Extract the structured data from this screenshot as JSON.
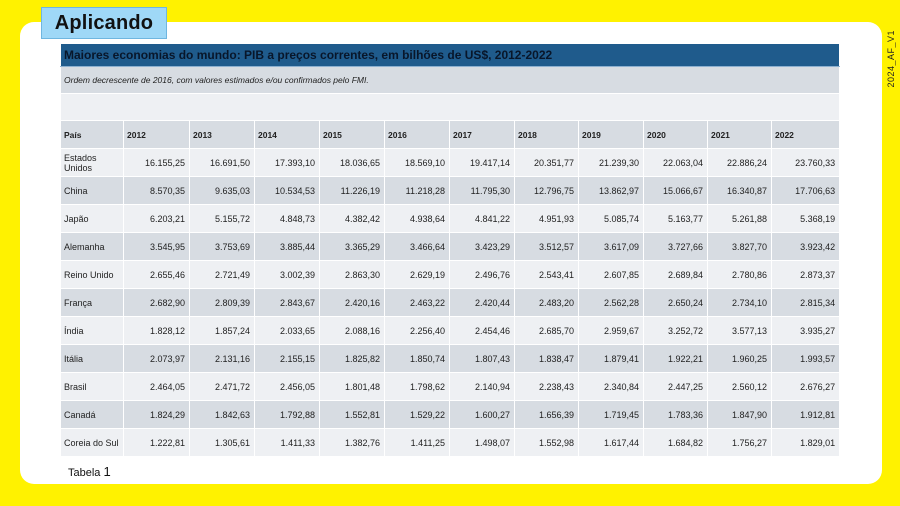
{
  "badge": "Aplicando",
  "side_code": "2024_AF_V1",
  "table": {
    "title": "Maiores economias do mundo: PIB a preços correntes, em bilhões de US$, 2012-2022",
    "subtitle": "Ordem decrescente de 2016, com valores estimados e/ou confirmados pelo FMI.",
    "headers": [
      "País",
      "2012",
      "2013",
      "2014",
      "2015",
      "2016",
      "2017",
      "2018",
      "2019",
      "2020",
      "2021",
      "2022"
    ],
    "rows": [
      [
        "Estados Unidos",
        "16.155,25",
        "16.691,50",
        "17.393,10",
        "18.036,65",
        "18.569,10",
        "19.417,14",
        "20.351,77",
        "21.239,30",
        "22.063,04",
        "22.886,24",
        "23.760,33"
      ],
      [
        "China",
        "8.570,35",
        "9.635,03",
        "10.534,53",
        "11.226,19",
        "11.218,28",
        "11.795,30",
        "12.796,75",
        "13.862,97",
        "15.066,67",
        "16.340,87",
        "17.706,63"
      ],
      [
        "Japão",
        "6.203,21",
        "5.155,72",
        "4.848,73",
        "4.382,42",
        "4.938,64",
        "4.841,22",
        "4.951,93",
        "5.085,74",
        "5.163,77",
        "5.261,88",
        "5.368,19"
      ],
      [
        "Alemanha",
        "3.545,95",
        "3.753,69",
        "3.885,44",
        "3.365,29",
        "3.466,64",
        "3.423,29",
        "3.512,57",
        "3.617,09",
        "3.727,66",
        "3.827,70",
        "3.923,42"
      ],
      [
        "Reino Unido",
        "2.655,46",
        "2.721,49",
        "3.002,39",
        "2.863,30",
        "2.629,19",
        "2.496,76",
        "2.543,41",
        "2.607,85",
        "2.689,84",
        "2.780,86",
        "2.873,37"
      ],
      [
        "França",
        "2.682,90",
        "2.809,39",
        "2.843,67",
        "2.420,16",
        "2.463,22",
        "2.420,44",
        "2.483,20",
        "2.562,28",
        "2.650,24",
        "2.734,10",
        "2.815,34"
      ],
      [
        "Índia",
        "1.828,12",
        "1.857,24",
        "2.033,65",
        "2.088,16",
        "2.256,40",
        "2.454,46",
        "2.685,70",
        "2.959,67",
        "3.252,72",
        "3.577,13",
        "3.935,27"
      ],
      [
        "Itália",
        "2.073,97",
        "2.131,16",
        "2.155,15",
        "1.825,82",
        "1.850,74",
        "1.807,43",
        "1.838,47",
        "1.879,41",
        "1.922,21",
        "1.960,25",
        "1.993,57"
      ],
      [
        "Brasil",
        "2.464,05",
        "2.471,72",
        "2.456,05",
        "1.801,48",
        "1.798,62",
        "2.140,94",
        "2.238,43",
        "2.340,84",
        "2.447,25",
        "2.560,12",
        "2.676,27"
      ],
      [
        "Canadá",
        "1.824,29",
        "1.842,63",
        "1.792,88",
        "1.552,81",
        "1.529,22",
        "1.600,27",
        "1.656,39",
        "1.719,45",
        "1.783,36",
        "1.847,90",
        "1.912,81"
      ],
      [
        "Coreia do Sul",
        "1.222,81",
        "1.305,61",
        "1.411,33",
        "1.382,76",
        "1.411,25",
        "1.498,07",
        "1.552,98",
        "1.617,44",
        "1.684,82",
        "1.756,27",
        "1.829,01"
      ]
    ]
  },
  "caption": {
    "label": "Tabela",
    "number": "1"
  }
}
